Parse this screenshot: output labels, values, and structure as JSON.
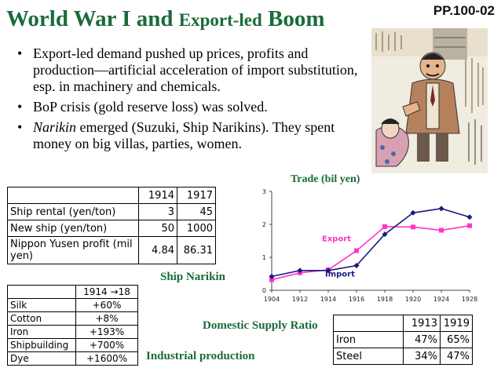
{
  "slide": {
    "title_part1": "World War I and ",
    "title_part2": "Export-led",
    "title_part3": " Boom",
    "page_ref": "PP.100-02"
  },
  "bullets": [
    {
      "italic": "",
      "text": "Export-led demand pushed up prices, profits and production—artificial acceleration of import substitution, esp. in machinery and chemicals."
    },
    {
      "italic": "",
      "text": "BoP crisis (gold reserve loss) was solved."
    },
    {
      "italic": "Narikin",
      "text": " emerged (Suzuki, Ship Narikins). They spent money on big villas, parties, women."
    }
  ],
  "illustration": {
    "icon": "narikin-cartoon-icon"
  },
  "ship_table": {
    "caption": "Ship Narikin",
    "headers": [
      "",
      "1914",
      "1917"
    ],
    "rows": [
      [
        "Ship rental (yen/ton)",
        "3",
        "45"
      ],
      [
        "New ship (yen/ton)",
        "50",
        "1000"
      ],
      [
        "Nippon Yusen profit (mil yen)",
        "4.84",
        "86.31"
      ]
    ]
  },
  "industrial_table": {
    "caption": "Industrial production",
    "header": "1914 →18",
    "rows": [
      [
        "Silk",
        "+60%"
      ],
      [
        "Cotton",
        "+8%"
      ],
      [
        "Iron",
        "+193%"
      ],
      [
        "Shipbuilding",
        "+700%"
      ],
      [
        "Dye",
        "+1600%"
      ]
    ]
  },
  "supply_table": {
    "caption": "Domestic Supply Ratio",
    "headers": [
      "",
      "1913",
      "1919"
    ],
    "rows": [
      [
        "Iron",
        "47%",
        "65%"
      ],
      [
        "Steel",
        "34%",
        "47%"
      ]
    ]
  },
  "colors": {
    "title_green": "#1a6b3a",
    "export": "#ff33cc",
    "import": "#1a1a80"
  },
  "chart_data": {
    "type": "line",
    "title": "Trade (bil yen)",
    "x": [
      1904,
      1912,
      1914,
      1916,
      1918,
      1920,
      1924,
      1928
    ],
    "x_tick_labels": [
      "1904",
      "1912",
      "1914",
      "1916",
      "1918",
      "1920",
      "1924",
      "1928"
    ],
    "ylim": [
      0,
      3
    ],
    "y_ticks": [
      0,
      1,
      2,
      3
    ],
    "grid": false,
    "series": [
      {
        "name": "Export",
        "values": [
          0.32,
          0.53,
          0.62,
          1.2,
          1.93,
          1.92,
          1.82,
          1.96
        ],
        "color": "#ff33cc"
      },
      {
        "name": "Import",
        "values": [
          0.42,
          0.6,
          0.6,
          0.75,
          1.7,
          2.35,
          2.48,
          2.22
        ],
        "color": "#1a1a80"
      }
    ]
  }
}
